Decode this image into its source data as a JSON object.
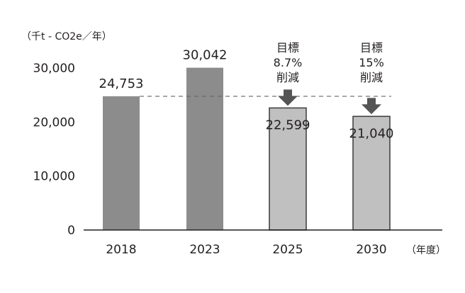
{
  "chart_data": {
    "type": "bar",
    "y_unit_label": "（千t - CO2e／年）",
    "x_unit_label": "（年度）",
    "categories": [
      "2018",
      "2023",
      "2025",
      "2030"
    ],
    "values": [
      24753,
      30042,
      22599,
      21040
    ],
    "value_labels": [
      "24,753",
      "30,042",
      "22,599",
      "21,040"
    ],
    "bar_kinds": [
      "actual",
      "actual",
      "target",
      "target"
    ],
    "annotations": [
      null,
      null,
      {
        "lines": [
          "目標",
          "8.7%",
          "削減"
        ],
        "arrow": "down"
      },
      {
        "lines": [
          "目標",
          "15%",
          "削減"
        ],
        "arrow": "down"
      }
    ],
    "ylim": [
      0,
      30000
    ],
    "y_ticks": [
      {
        "value": 0,
        "label": "0"
      },
      {
        "value": 10000,
        "label": "10,000"
      },
      {
        "value": 20000,
        "label": "20,000"
      },
      {
        "value": 30000,
        "label": "30,000"
      }
    ],
    "reference_line": {
      "value": 24753,
      "style": "dashed"
    },
    "grid": false,
    "colors": {
      "actual": "#8c8c8c",
      "target": "#c0c0c0",
      "target_outline": "#3a3a3a",
      "arrow": "#555555",
      "axis": "#231f20",
      "reference_line": "#666666"
    }
  }
}
